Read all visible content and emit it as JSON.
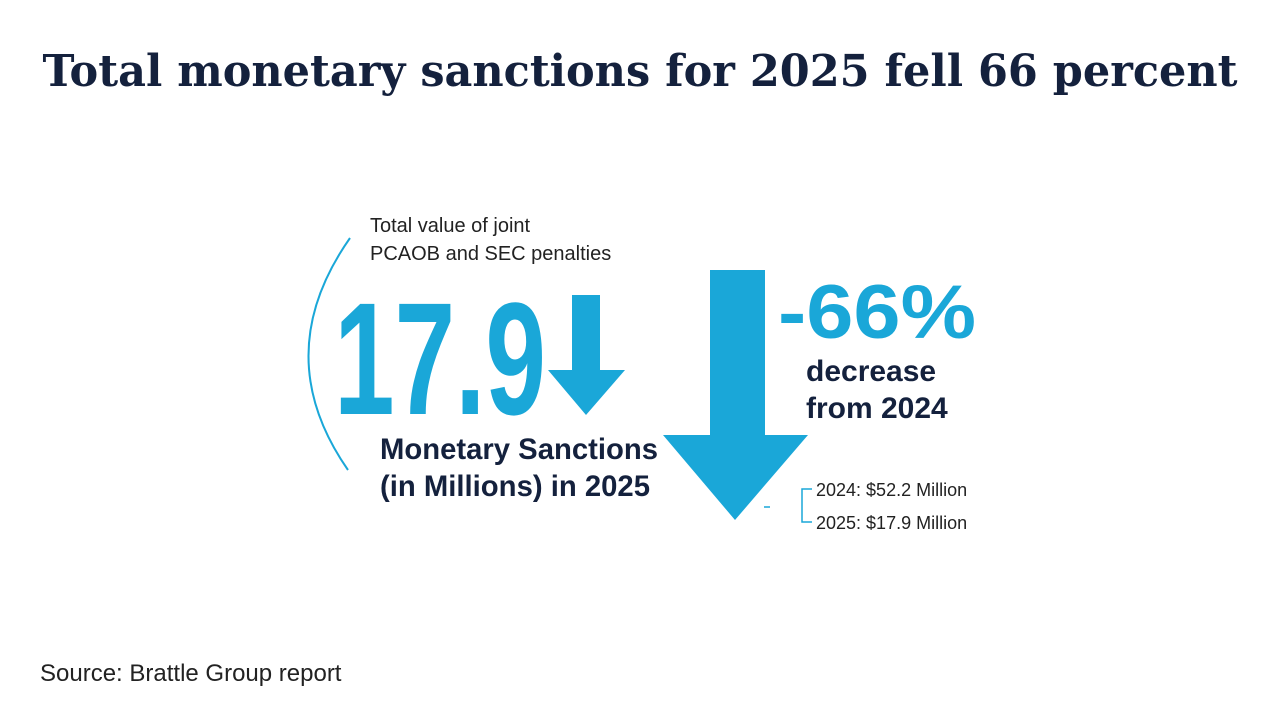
{
  "header": {
    "title": "Total monetary sanctions for 2025 fell 66 percent"
  },
  "figure": {
    "caption_lines": [
      "Total value of joint",
      "PCAOB and SEC penalties"
    ],
    "big_number": "17.9",
    "label_lines": [
      "Monetary Sanctions",
      "(in Millions) in 2025"
    ],
    "change": "-66%",
    "change_lines": [
      "decrease",
      "from 2024"
    ],
    "comparison": [
      "2024: $52.2 Million",
      "2025: $17.9 Million"
    ]
  },
  "footer": {
    "source": "Source: Brattle Group report"
  }
}
